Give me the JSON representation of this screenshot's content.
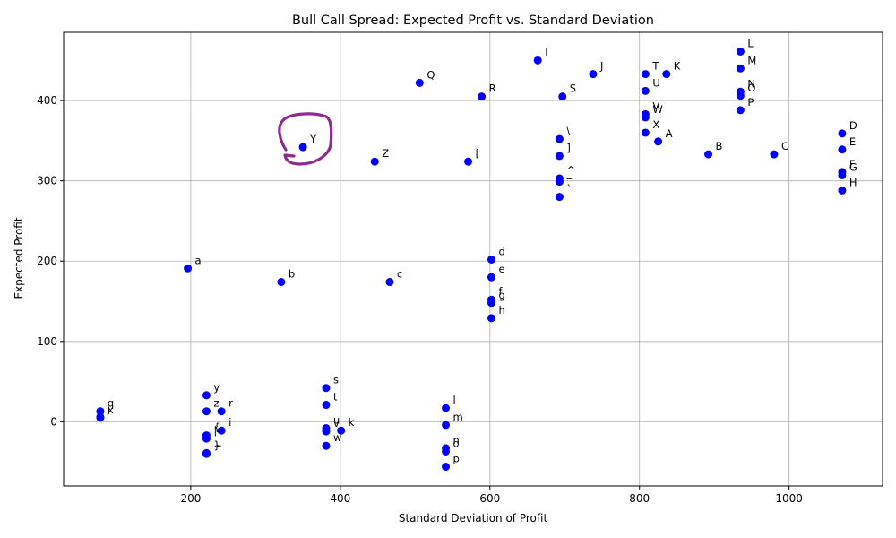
{
  "chart_data": {
    "type": "scatter",
    "title": "Bull Call Spread: Expected Profit vs. Standard Deviation",
    "xlabel": "Standard Deviation of Profit",
    "ylabel": "Expected Profit",
    "xlim": [
      30,
      1125
    ],
    "ylim": [
      -80,
      485
    ],
    "xticks": [
      200,
      400,
      600,
      800,
      1000
    ],
    "yticks": [
      0,
      100,
      200,
      300,
      400
    ],
    "ytick_labels": [
      "0",
      "100",
      "200",
      "300",
      "400"
    ],
    "grid": true,
    "marker_color": "#0000ff",
    "annotation_color": "#8e2a90",
    "points": [
      {
        "label": "A",
        "x": 825,
        "y": 349
      },
      {
        "label": "B",
        "x": 892,
        "y": 333
      },
      {
        "label": "C",
        "x": 980,
        "y": 333
      },
      {
        "label": "D",
        "x": 1071,
        "y": 359
      },
      {
        "label": "E",
        "x": 1071,
        "y": 339
      },
      {
        "label": "F",
        "x": 1071,
        "y": 311
      },
      {
        "label": "G",
        "x": 1071,
        "y": 307
      },
      {
        "label": "H",
        "x": 1071,
        "y": 288
      },
      {
        "label": "I",
        "x": 664,
        "y": 450
      },
      {
        "label": "J",
        "x": 738,
        "y": 433
      },
      {
        "label": "K",
        "x": 836,
        "y": 433
      },
      {
        "label": "L",
        "x": 935,
        "y": 461
      },
      {
        "label": "M",
        "x": 935,
        "y": 440
      },
      {
        "label": "N",
        "x": 935,
        "y": 411
      },
      {
        "label": "O",
        "x": 935,
        "y": 406
      },
      {
        "label": "P",
        "x": 935,
        "y": 388
      },
      {
        "label": "Q",
        "x": 506,
        "y": 422
      },
      {
        "label": "R",
        "x": 589,
        "y": 405
      },
      {
        "label": "S",
        "x": 697,
        "y": 405
      },
      {
        "label": "T",
        "x": 808,
        "y": 433
      },
      {
        "label": "U",
        "x": 808,
        "y": 412
      },
      {
        "label": "V",
        "x": 808,
        "y": 383
      },
      {
        "label": "W",
        "x": 808,
        "y": 379
      },
      {
        "label": "X",
        "x": 808,
        "y": 360
      },
      {
        "label": "Y",
        "x": 350,
        "y": 342
      },
      {
        "label": "Z",
        "x": 446,
        "y": 324
      },
      {
        "label": "[",
        "x": 571,
        "y": 324
      },
      {
        "label": "\\",
        "x": 693,
        "y": 352
      },
      {
        "label": "]",
        "x": 693,
        "y": 331
      },
      {
        "label": "^",
        "x": 693,
        "y": 303
      },
      {
        "label": "_",
        "x": 693,
        "y": 299
      },
      {
        "label": "`",
        "x": 693,
        "y": 280
      },
      {
        "label": "a",
        "x": 196,
        "y": 191
      },
      {
        "label": "b",
        "x": 321,
        "y": 174
      },
      {
        "label": "c",
        "x": 466,
        "y": 174
      },
      {
        "label": "d",
        "x": 602,
        "y": 202
      },
      {
        "label": "e",
        "x": 602,
        "y": 180
      },
      {
        "label": "f",
        "x": 602,
        "y": 152
      },
      {
        "label": "g",
        "x": 602,
        "y": 148
      },
      {
        "label": "h",
        "x": 602,
        "y": 129
      },
      {
        "label": "i",
        "x": 241,
        "y": -11
      },
      {
        "label": "j",
        "x": 79,
        "y": 6
      },
      {
        "label": "k",
        "x": 401,
        "y": -11
      },
      {
        "label": "l",
        "x": 541,
        "y": 17
      },
      {
        "label": "m",
        "x": 541,
        "y": -4
      },
      {
        "label": "n",
        "x": 541,
        "y": -33
      },
      {
        "label": "o",
        "x": 541,
        "y": -37
      },
      {
        "label": "p",
        "x": 541,
        "y": -56
      },
      {
        "label": "q",
        "x": 79,
        "y": 13
      },
      {
        "label": "r",
        "x": 241,
        "y": 13
      },
      {
        "label": "s",
        "x": 381,
        "y": 42
      },
      {
        "label": "t",
        "x": 381,
        "y": 21
      },
      {
        "label": "u",
        "x": 381,
        "y": -8
      },
      {
        "label": "v",
        "x": 381,
        "y": -12
      },
      {
        "label": "w",
        "x": 381,
        "y": -30
      },
      {
        "label": "x",
        "x": 79,
        "y": 5
      },
      {
        "label": "y",
        "x": 221,
        "y": 33
      },
      {
        "label": "z",
        "x": 221,
        "y": 13
      },
      {
        "label": "{",
        "x": 221,
        "y": -17
      },
      {
        "label": "|",
        "x": 221,
        "y": -21
      },
      {
        "label": "}",
        "x": 221,
        "y": -39
      },
      {
        "label": "~",
        "x": 221,
        "y": -40
      }
    ]
  }
}
